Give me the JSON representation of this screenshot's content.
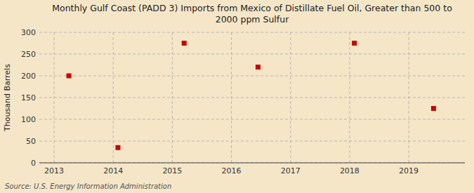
{
  "chart_data": {
    "type": "scatter",
    "title": "Monthly Gulf Coast (PADD 3) Imports from Mexico of Distillate Fuel Oil, Greater than 500 to\n2000 ppm Sulfur",
    "y_label": "Thousand Barrels",
    "annotations": [
      "Source: U.S. Energy Information Administration"
    ],
    "x": [
      2013.25,
      2014.08,
      2015.2,
      2016.45,
      2018.08,
      2019.42
    ],
    "values": [
      200,
      35,
      275,
      220,
      275,
      125
    ],
    "color": "#cc0000",
    "marker": "square",
    "xlim": [
      2012.75,
      2019.95
    ],
    "ylim": [
      0,
      300
    ],
    "xticks": [
      2013,
      2014,
      2015,
      2016,
      2017,
      2018,
      2019
    ],
    "yticks": [
      0,
      50,
      100,
      150,
      200,
      250,
      300
    ],
    "grid": true
  }
}
